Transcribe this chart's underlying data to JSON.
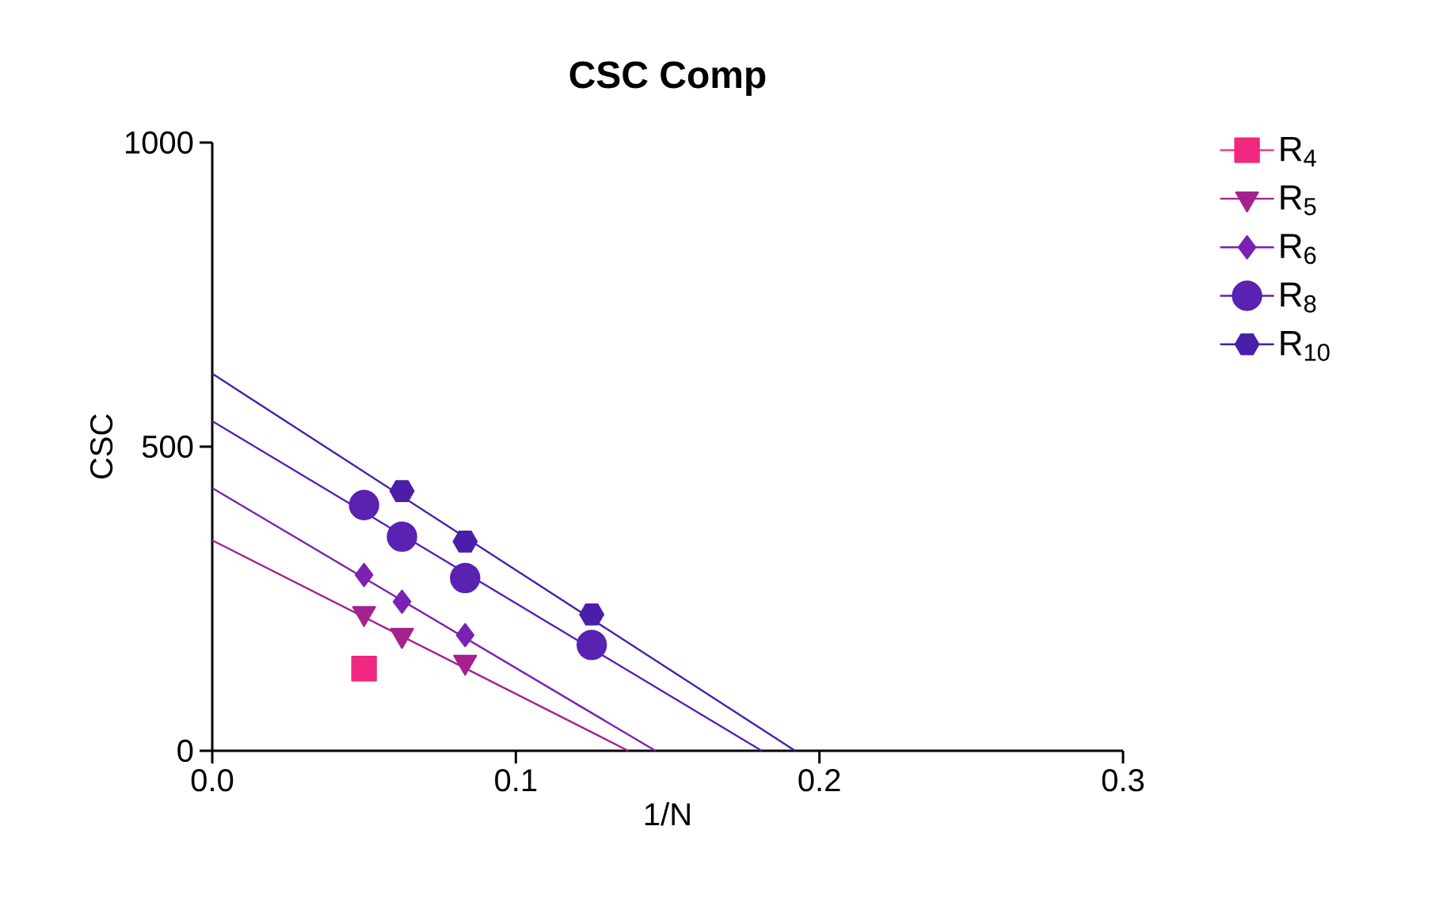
{
  "chart_data": {
    "type": "scatter",
    "title": "CSC Comp",
    "xlabel": "1/N",
    "ylabel": "CSC",
    "xlim": [
      0,
      0.3
    ],
    "ylim": [
      0,
      1000
    ],
    "xticks": [
      {
        "value": 0,
        "label": "0.0"
      },
      {
        "value": 0.1,
        "label": "0.1"
      },
      {
        "value": 0.2,
        "label": "0.2"
      },
      {
        "value": 0.3,
        "label": "0.3"
      }
    ],
    "yticks": [
      0,
      500,
      1000
    ],
    "grid": false,
    "legend": "right",
    "series": [
      {
        "name": "R$_{4}$",
        "color": "#f0287f",
        "marker": "square",
        "x": [
          0.05
        ],
        "values": [
          135
        ]
      },
      {
        "name": "R$_{5}$",
        "color": "#a4228e",
        "marker": "triangle",
        "x": [
          0.05,
          0.0625,
          0.0833
        ],
        "values": [
          226,
          190,
          146
        ]
      },
      {
        "name": "R$_{6}$",
        "color": "#7a22b4",
        "marker": "diamond",
        "x": [
          0.05,
          0.0625,
          0.0833
        ],
        "values": [
          289,
          245,
          190
        ]
      },
      {
        "name": "R$_{8}$",
        "color": "#5a22b0",
        "marker": "circle",
        "x": [
          0.05,
          0.0625,
          0.0833,
          0.125
        ],
        "values": [
          404,
          352,
          284,
          174
        ]
      },
      {
        "name": "R$_{10}$",
        "color": "#4a1ea8",
        "x": [
          0.0625,
          0.0833,
          0.125
        ],
        "values": [
          427,
          344,
          224
        ]
      },
      {
        "type": "line",
        "color": "#a4228e",
        "marker": "none",
        "x": [
          0,
          0.137
        ],
        "values": [
          346,
          0
        ]
      },
      {
        "type": "line",
        "color": "#7a22b4",
        "marker": "none",
        "x": [
          0,
          0.146
        ],
        "values": [
          432,
          0
        ]
      },
      {
        "type": "line",
        "color": "#5a22b0",
        "marker": "none",
        "x": [
          0,
          0.181
        ],
        "values": [
          542,
          0
        ]
      },
      {
        "type": "line",
        "color": "#4a1ea8",
        "marker": "none",
        "x": [
          0,
          0.192
        ],
        "values": [
          620,
          0
        ]
      }
    ]
  }
}
